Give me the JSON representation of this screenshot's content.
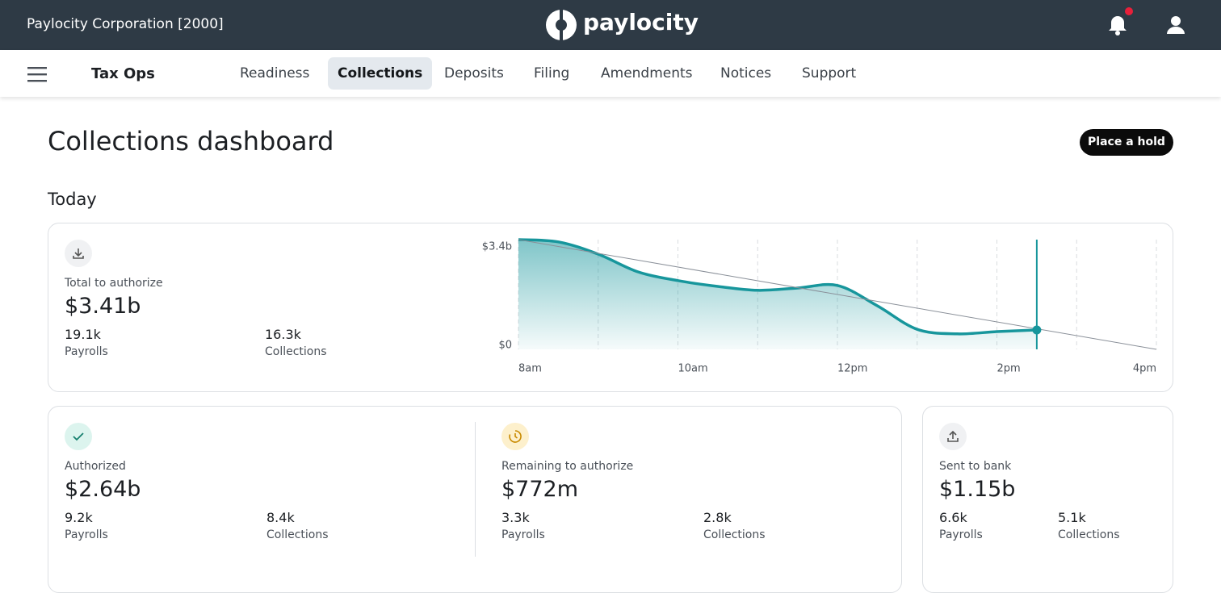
{
  "header": {
    "company": "Paylocity Corporation [2000]",
    "logo": "paylocity"
  },
  "nav": {
    "section": "Tax Ops",
    "tabs": [
      "Readiness",
      "Collections",
      "Deposits",
      "Filing",
      "Amendments",
      "Notices",
      "Support"
    ],
    "active_tab": 1
  },
  "page": {
    "title": "Collections dashboard",
    "action": "Place a hold",
    "period": "Today"
  },
  "summary": {
    "label": "Total to authorize",
    "amount": "$3.41b",
    "stats": [
      {
        "value": "19.1k",
        "label": "Payrolls"
      },
      {
        "value": "16.3k",
        "label": "Collections"
      }
    ]
  },
  "cards": [
    {
      "label": "Authorized",
      "amount": "$2.64b",
      "stats": [
        {
          "value": "9.2k",
          "label": "Payrolls"
        },
        {
          "value": "8.4k",
          "label": "Collections"
        }
      ]
    },
    {
      "label": "Remaining to authorize",
      "amount": "$772m",
      "stats": [
        {
          "value": "3.3k",
          "label": "Payrolls"
        },
        {
          "value": "2.8k",
          "label": "Collections"
        }
      ]
    },
    {
      "label": "Sent to bank",
      "amount": "$1.15b",
      "stats": [
        {
          "value": "6.6k",
          "label": "Payrolls"
        },
        {
          "value": "5.1k",
          "label": "Collections"
        }
      ]
    }
  ],
  "chart_data": {
    "type": "area",
    "series": [
      {
        "color": "#17969c",
        "x": [
          8,
          8.5,
          9,
          9.5,
          10,
          10.5,
          11,
          11.5,
          12,
          12.5,
          13,
          13.5,
          14,
          14.5
        ],
        "values": [
          3.4,
          3.33,
          2.95,
          2.4,
          2.13,
          1.95,
          1.83,
          1.9,
          1.98,
          1.35,
          0.62,
          0.48,
          0.55,
          0.6
        ]
      },
      {
        "color": "#8a9099",
        "x": [
          8,
          16
        ],
        "values": [
          3.4,
          0
        ]
      }
    ],
    "now": 14.5,
    "xlim": [
      8,
      16
    ],
    "xticks": [
      {
        "value": 8,
        "label": "8am"
      },
      {
        "value": 10,
        "label": "10am"
      },
      {
        "value": 12,
        "label": "12pm"
      },
      {
        "value": 14,
        "label": "2pm"
      },
      {
        "value": 16,
        "label": "4pm"
      }
    ],
    "xgrid": [
      8,
      9,
      10,
      11,
      12,
      13,
      14,
      15,
      16
    ],
    "ylim": [
      0,
      3.4
    ],
    "yticks": [
      {
        "value": 3.4,
        "label": "$3.4b"
      },
      {
        "value": 0,
        "label": "$0"
      }
    ]
  }
}
